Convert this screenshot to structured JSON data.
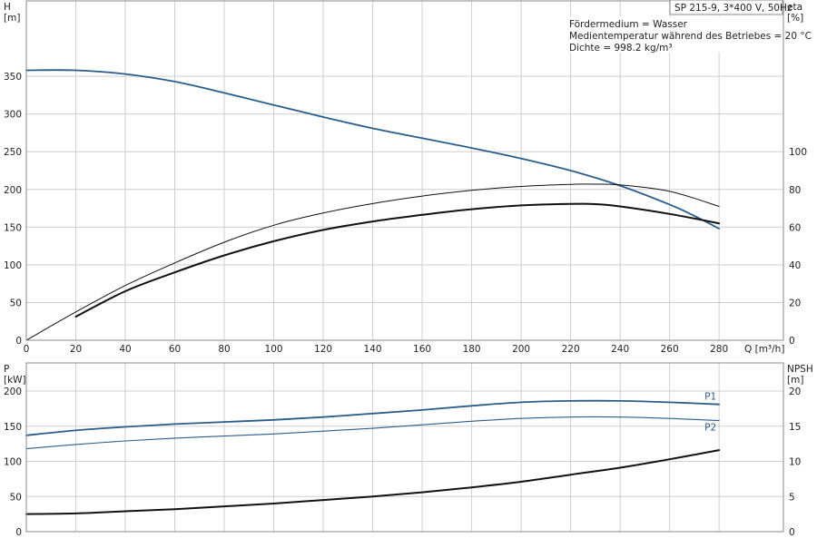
{
  "header": {
    "pump_label": "SP 215-9, 3*400 V, 50Hz",
    "info_lines": [
      "Fördermedium = Wasser",
      "Medientemperatur während des Betriebes = 20 °C",
      "Dichte = 998.2 kg/m³"
    ]
  },
  "colors": {
    "blue": "#2b5d8a",
    "black": "#111111",
    "grid": "#cfcfcf"
  },
  "chart_data": [
    {
      "type": "line",
      "id": "head-efficiency",
      "xlabel": "Q [m³/h]",
      "xticks": [
        0,
        20,
        40,
        60,
        80,
        100,
        120,
        140,
        160,
        180,
        200,
        220,
        240,
        260,
        280
      ],
      "xlim": [
        0,
        306
      ],
      "y_left": {
        "label": [
          "H",
          "[m]"
        ],
        "lim": [
          0,
          450
        ],
        "ticks": [
          0,
          50,
          100,
          150,
          200,
          250,
          300,
          350
        ]
      },
      "y_right": {
        "label": [
          "eta",
          "[%]"
        ],
        "lim": [
          0,
          180
        ],
        "ticks": [
          0,
          20,
          40,
          60,
          80,
          100
        ]
      },
      "grid": true,
      "series": [
        {
          "name": "",
          "axis": "left",
          "color": "#2b5d8a",
          "width": 1.8,
          "x": [
            0,
            20,
            40,
            60,
            80,
            100,
            120,
            140,
            160,
            180,
            200,
            220,
            240,
            260,
            270,
            280
          ],
          "y": [
            358,
            358,
            353,
            343,
            328,
            312,
            296,
            281,
            268,
            255,
            241,
            225,
            205,
            180,
            165,
            148
          ]
        },
        {
          "name": "",
          "axis": "right",
          "color": "#111111",
          "width": 1.0,
          "x": [
            0,
            20,
            40,
            60,
            80,
            100,
            120,
            140,
            160,
            180,
            200,
            220,
            230,
            240,
            260,
            280
          ],
          "y": [
            0,
            15,
            29,
            41,
            52,
            61,
            67.5,
            72.5,
            76.5,
            79.5,
            81.6,
            82.7,
            82.8,
            82.4,
            79,
            71
          ]
        },
        {
          "name": "",
          "axis": "right",
          "color": "#111111",
          "width": 2.0,
          "x": [
            20,
            40,
            60,
            80,
            100,
            120,
            140,
            160,
            180,
            200,
            220,
            230,
            240,
            260,
            280
          ],
          "y": [
            12.5,
            26,
            36,
            45,
            52.5,
            58.5,
            63,
            66.5,
            69.5,
            71.5,
            72.3,
            72.2,
            71,
            67,
            62
          ]
        }
      ]
    },
    {
      "type": "line",
      "id": "power-npsh",
      "xlim": [
        0,
        306
      ],
      "y_left": {
        "label": [
          "P",
          "[kW]"
        ],
        "lim": [
          0,
          240
        ],
        "ticks": [
          0,
          50,
          100,
          150,
          200
        ]
      },
      "y_right": {
        "label": [
          "NPSH",
          "[m]"
        ],
        "lim": [
          0,
          24
        ],
        "ticks": [
          0,
          5,
          10,
          15,
          20
        ]
      },
      "grid": true,
      "series": [
        {
          "name": "P1",
          "axis": "left",
          "color": "#2b5d8a",
          "width": 1.8,
          "x": [
            0,
            20,
            40,
            60,
            80,
            100,
            120,
            140,
            160,
            180,
            200,
            220,
            240,
            260,
            280
          ],
          "y": [
            137,
            144,
            149,
            153,
            156,
            159,
            163,
            168,
            173,
            179,
            184,
            186,
            186,
            184,
            181
          ]
        },
        {
          "name": "P2",
          "axis": "left",
          "color": "#2b5d8a",
          "width": 1.1,
          "x": [
            0,
            20,
            40,
            60,
            80,
            100,
            120,
            140,
            160,
            180,
            200,
            220,
            240,
            260,
            280
          ],
          "y": [
            118,
            124,
            129,
            133,
            136,
            139,
            143,
            147,
            152,
            157,
            161,
            163,
            163,
            161,
            158
          ]
        },
        {
          "name": "",
          "axis": "right",
          "color": "#111111",
          "width": 2.0,
          "x": [
            0,
            20,
            40,
            60,
            80,
            100,
            120,
            140,
            160,
            180,
            200,
            220,
            240,
            260,
            280
          ],
          "y": [
            2.5,
            2.6,
            2.9,
            3.2,
            3.6,
            4.0,
            4.5,
            5.0,
            5.6,
            6.3,
            7.1,
            8.1,
            9.1,
            10.3,
            11.6
          ]
        }
      ]
    }
  ]
}
